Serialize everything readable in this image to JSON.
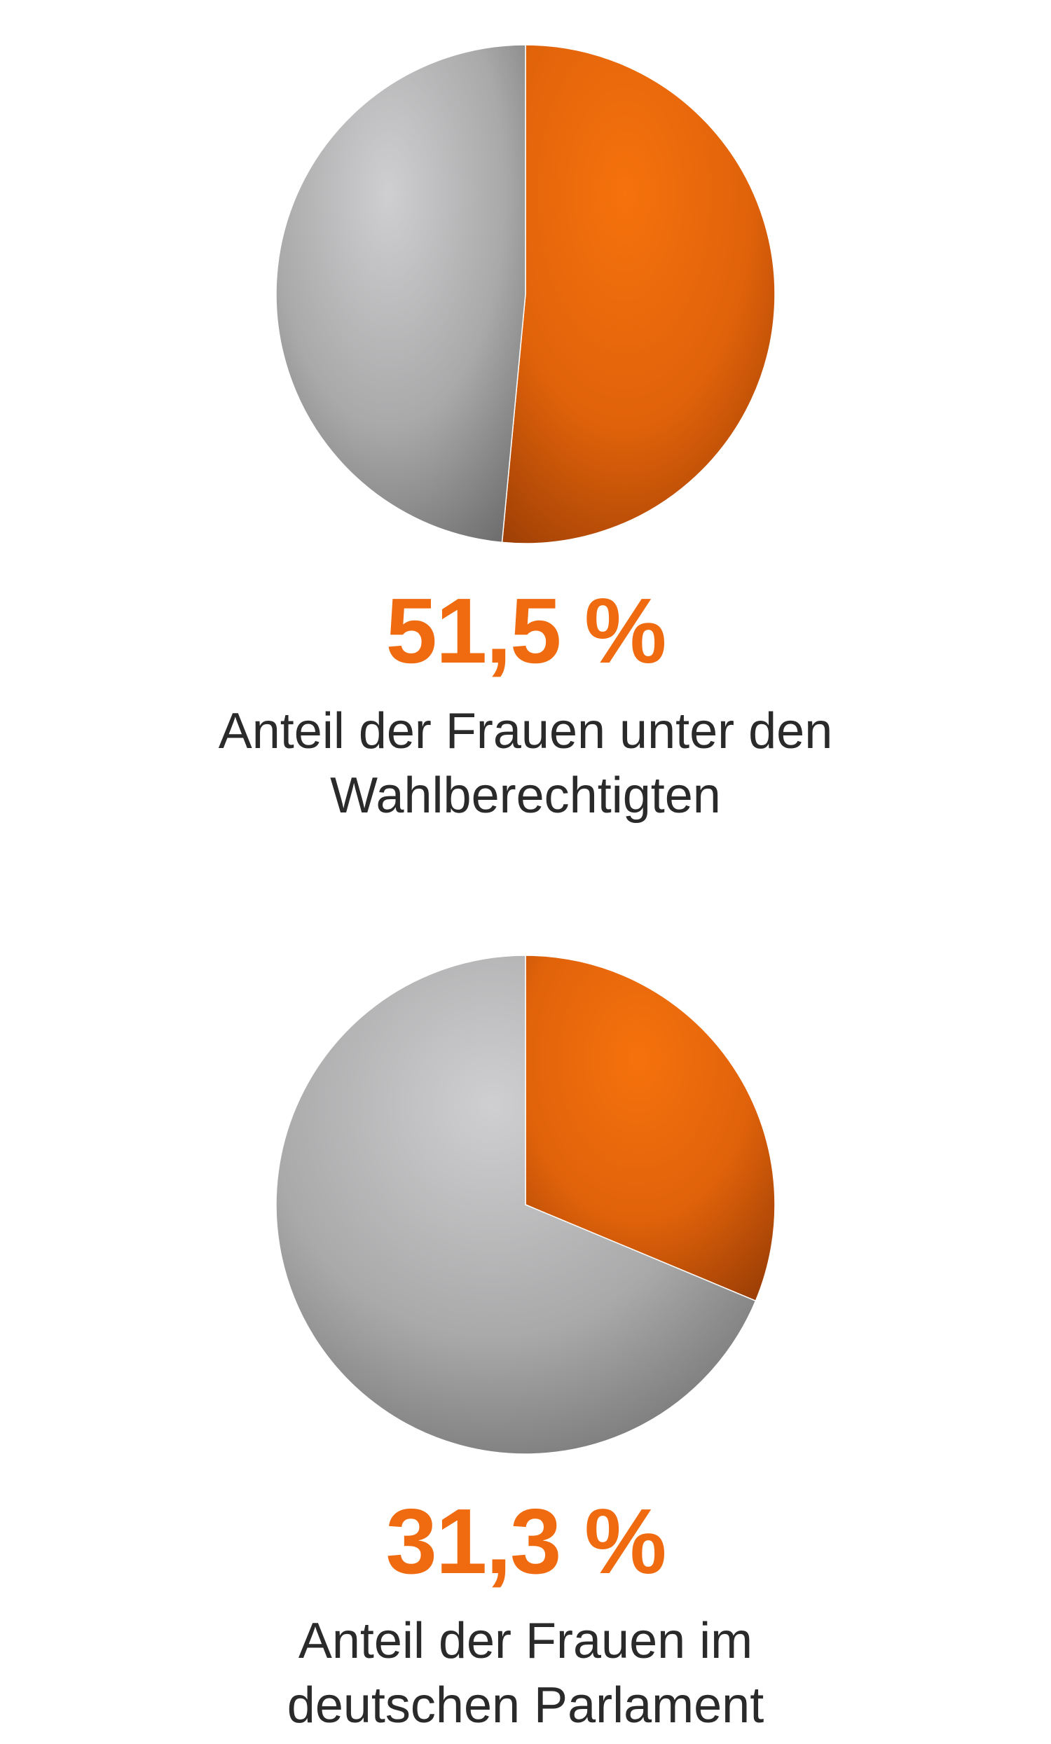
{
  "colors": {
    "accent": "#f06a0f",
    "rest": "#b8b8b8",
    "text": "#2a2a2a"
  },
  "chart_data": [
    {
      "type": "pie",
      "slices": [
        {
          "value": 51.5,
          "color": "#f06a0f"
        },
        {
          "value": 48.5,
          "color": "#b8b8b8"
        }
      ],
      "value_label": "51,5 %",
      "caption": [
        "Anteil der Frauen unter den",
        "Wahlberechtigten"
      ]
    },
    {
      "type": "pie",
      "slices": [
        {
          "value": 31.3,
          "color": "#f06a0f"
        },
        {
          "value": 68.7,
          "color": "#b8b8b8"
        }
      ],
      "value_label": "31,3 %",
      "caption": [
        "Anteil der Frauen im",
        "deutschen Parlament"
      ]
    }
  ]
}
